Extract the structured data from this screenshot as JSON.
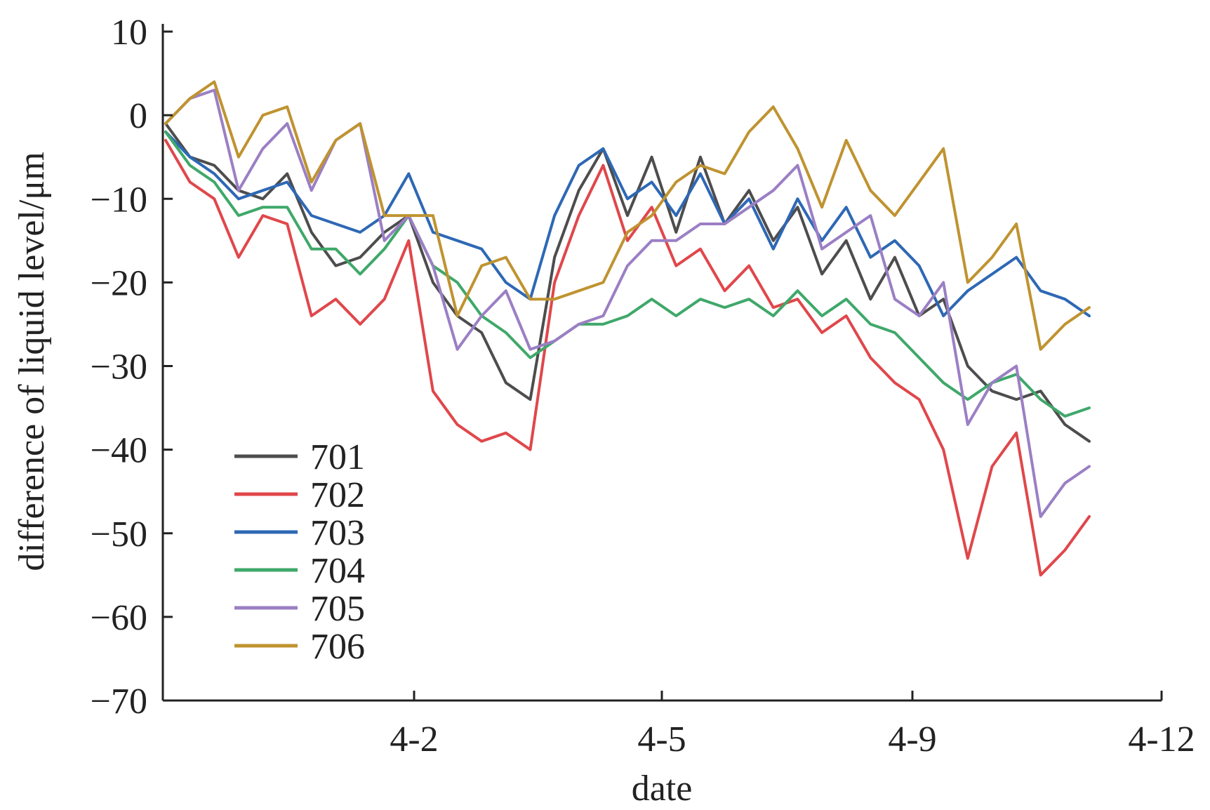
{
  "chart_data": {
    "type": "line",
    "title": "",
    "xlabel": "date",
    "ylabel": "difference of liquid level/μm",
    "ylim": [
      -70,
      10
    ],
    "yticks": [
      10,
      0,
      -10,
      -20,
      -30,
      -40,
      -50,
      -60,
      -70
    ],
    "yticklabels": [
      "10",
      "0",
      "−10",
      "−20",
      "−30",
      "−40",
      "−50",
      "−60",
      "−70"
    ],
    "xticklabels": [
      "4-2",
      "4-5",
      "4-9",
      "4-12"
    ],
    "grid": false,
    "legend_position": "bottom-left",
    "x": [
      0,
      0.3,
      0.6,
      0.9,
      1.2,
      1.5,
      1.8,
      2.1,
      2.4,
      2.7,
      3.0,
      3.3,
      3.6,
      3.9,
      4.2,
      4.5,
      4.8,
      5.1,
      5.4,
      5.7,
      6.0,
      6.3,
      6.6,
      6.9,
      7.2,
      7.5,
      7.8,
      8.1,
      8.4,
      8.7,
      9.0,
      9.3,
      9.6,
      9.9,
      10.2,
      10.5,
      10.8,
      11.1,
      11.4
    ],
    "series": [
      {
        "name": "701",
        "color": "#4d4d4d",
        "values": [
          -1,
          -5,
          -6,
          -9,
          -10,
          -7,
          -14,
          -18,
          -17,
          -14,
          -12,
          -20,
          -24,
          -26,
          -32,
          -34,
          -17,
          -9,
          -4,
          -12,
          -5,
          -14,
          -5,
          -13,
          -9,
          -15,
          -11,
          -19,
          -15,
          -22,
          -17,
          -24,
          -22,
          -30,
          -33,
          -34,
          -33,
          -37,
          -39
        ]
      },
      {
        "name": "702",
        "color": "#e0474b",
        "values": [
          -3,
          -8,
          -10,
          -17,
          -12,
          -13,
          -24,
          -22,
          -25,
          -22,
          -15,
          -33,
          -37,
          -39,
          -38,
          -40,
          -20,
          -12,
          -6,
          -15,
          -11,
          -18,
          -16,
          -21,
          -18,
          -23,
          -22,
          -26,
          -24,
          -29,
          -32,
          -34,
          -40,
          -53,
          -42,
          -38,
          -55,
          -52,
          -48
        ]
      },
      {
        "name": "703",
        "color": "#2e68b5",
        "values": [
          -2,
          -5,
          -7,
          -10,
          -9,
          -8,
          -12,
          -13,
          -14,
          -12,
          -7,
          -14,
          -15,
          -16,
          -20,
          -22,
          -12,
          -6,
          -4,
          -10,
          -8,
          -12,
          -7,
          -13,
          -10,
          -16,
          -10,
          -15,
          -11,
          -17,
          -15,
          -18,
          -24,
          -21,
          -19,
          -17,
          -21,
          -22,
          -24
        ]
      },
      {
        "name": "704",
        "color": "#3fa86a",
        "values": [
          -2,
          -6,
          -8,
          -12,
          -11,
          -11,
          -16,
          -16,
          -19,
          -16,
          -12,
          -18,
          -20,
          -24,
          -26,
          -29,
          -27,
          -25,
          -25,
          -24,
          -22,
          -24,
          -22,
          -23,
          -22,
          -24,
          -21,
          -24,
          -22,
          -25,
          -26,
          -29,
          -32,
          -34,
          -32,
          -31,
          -34,
          -36,
          -35
        ]
      },
      {
        "name": "705",
        "color": "#9b7fc4",
        "values": [
          -1,
          2,
          3,
          -9,
          -4,
          -1,
          -9,
          -3,
          -1,
          -15,
          -12,
          -18,
          -28,
          -24,
          -21,
          -28,
          -27,
          -25,
          -24,
          -18,
          -15,
          -15,
          -13,
          -13,
          -11,
          -9,
          -6,
          -16,
          -14,
          -12,
          -22,
          -24,
          -20,
          -37,
          -32,
          -30,
          -48,
          -44,
          -42
        ]
      },
      {
        "name": "706",
        "color": "#bf9330",
        "values": [
          -1,
          2,
          4,
          -5,
          0,
          1,
          -8,
          -3,
          -1,
          -12,
          -12,
          -12,
          -24,
          -18,
          -17,
          -22,
          -22,
          -21,
          -20,
          -14,
          -12,
          -8,
          -6,
          -7,
          -2,
          1,
          -4,
          -11,
          -3,
          -9,
          -12,
          -8,
          -4,
          -20,
          -17,
          -13,
          -28,
          -25,
          -23
        ]
      }
    ]
  }
}
